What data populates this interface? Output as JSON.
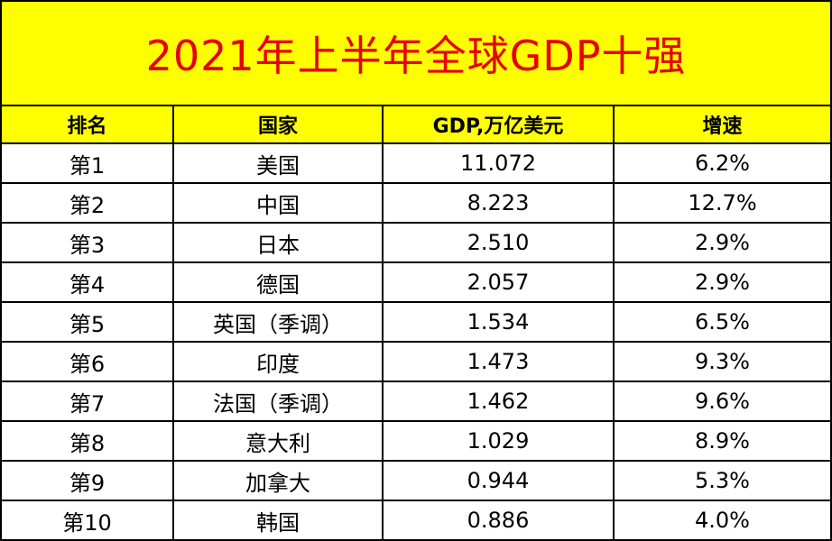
{
  "title": "2021年上半年全球GDP十强",
  "colors": {
    "header_bg": "#ffff00",
    "title_text": "#e60000",
    "border": "#000000"
  },
  "table": {
    "headers": [
      "排名",
      "国家",
      "GDP,万亿美元",
      "增速"
    ],
    "rows": [
      [
        "第1",
        "美国",
        "11.072",
        "6.2%"
      ],
      [
        "第2",
        "中国",
        "8.223",
        "12.7%"
      ],
      [
        "第3",
        "日本",
        "2.510",
        "2.9%"
      ],
      [
        "第4",
        "德国",
        "2.057",
        "2.9%"
      ],
      [
        "第5",
        "英国（季调）",
        "1.534",
        "6.5%"
      ],
      [
        "第6",
        "印度",
        "1.473",
        "9.3%"
      ],
      [
        "第7",
        "法国（季调）",
        "1.462",
        "9.6%"
      ],
      [
        "第8",
        "意大利",
        "1.029",
        "8.9%"
      ],
      [
        "第9",
        "加拿大",
        "0.944",
        "5.3%"
      ],
      [
        "第10",
        "韩国",
        "0.886",
        "4.0%"
      ]
    ]
  }
}
